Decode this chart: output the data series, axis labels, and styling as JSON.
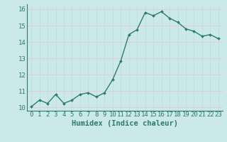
{
  "x": [
    0,
    1,
    2,
    3,
    4,
    5,
    6,
    7,
    8,
    9,
    10,
    11,
    12,
    13,
    14,
    15,
    16,
    17,
    18,
    19,
    20,
    21,
    22,
    23
  ],
  "y": [
    10.05,
    10.45,
    10.25,
    10.8,
    10.25,
    10.45,
    10.8,
    10.9,
    10.65,
    10.9,
    11.7,
    12.85,
    14.45,
    14.75,
    15.8,
    15.6,
    15.85,
    15.45,
    15.2,
    14.8,
    14.65,
    14.35,
    14.45,
    14.2
  ],
  "title": "",
  "xlabel": "Humidex (Indice chaleur)",
  "ylabel": "",
  "xlim": [
    -0.5,
    23.5
  ],
  "ylim": [
    9.8,
    16.3
  ],
  "yticks": [
    10,
    11,
    12,
    13,
    14,
    15,
    16
  ],
  "xticks": [
    0,
    1,
    2,
    3,
    4,
    5,
    6,
    7,
    8,
    9,
    10,
    11,
    12,
    13,
    14,
    15,
    16,
    17,
    18,
    19,
    20,
    21,
    22,
    23
  ],
  "bg_color": "#cce9e9",
  "grid_h_color": "#e8c8c8",
  "grid_v_color": "#b8d8d8",
  "line_color": "#2e7b6e",
  "marker_color": "#2e7b6e",
  "tick_label_color": "#2e7b6e",
  "xlabel_color": "#2e7b6e",
  "font_size_tick": 6.5,
  "font_size_label": 7.5,
  "line_width": 1.0,
  "marker_size": 2.0
}
